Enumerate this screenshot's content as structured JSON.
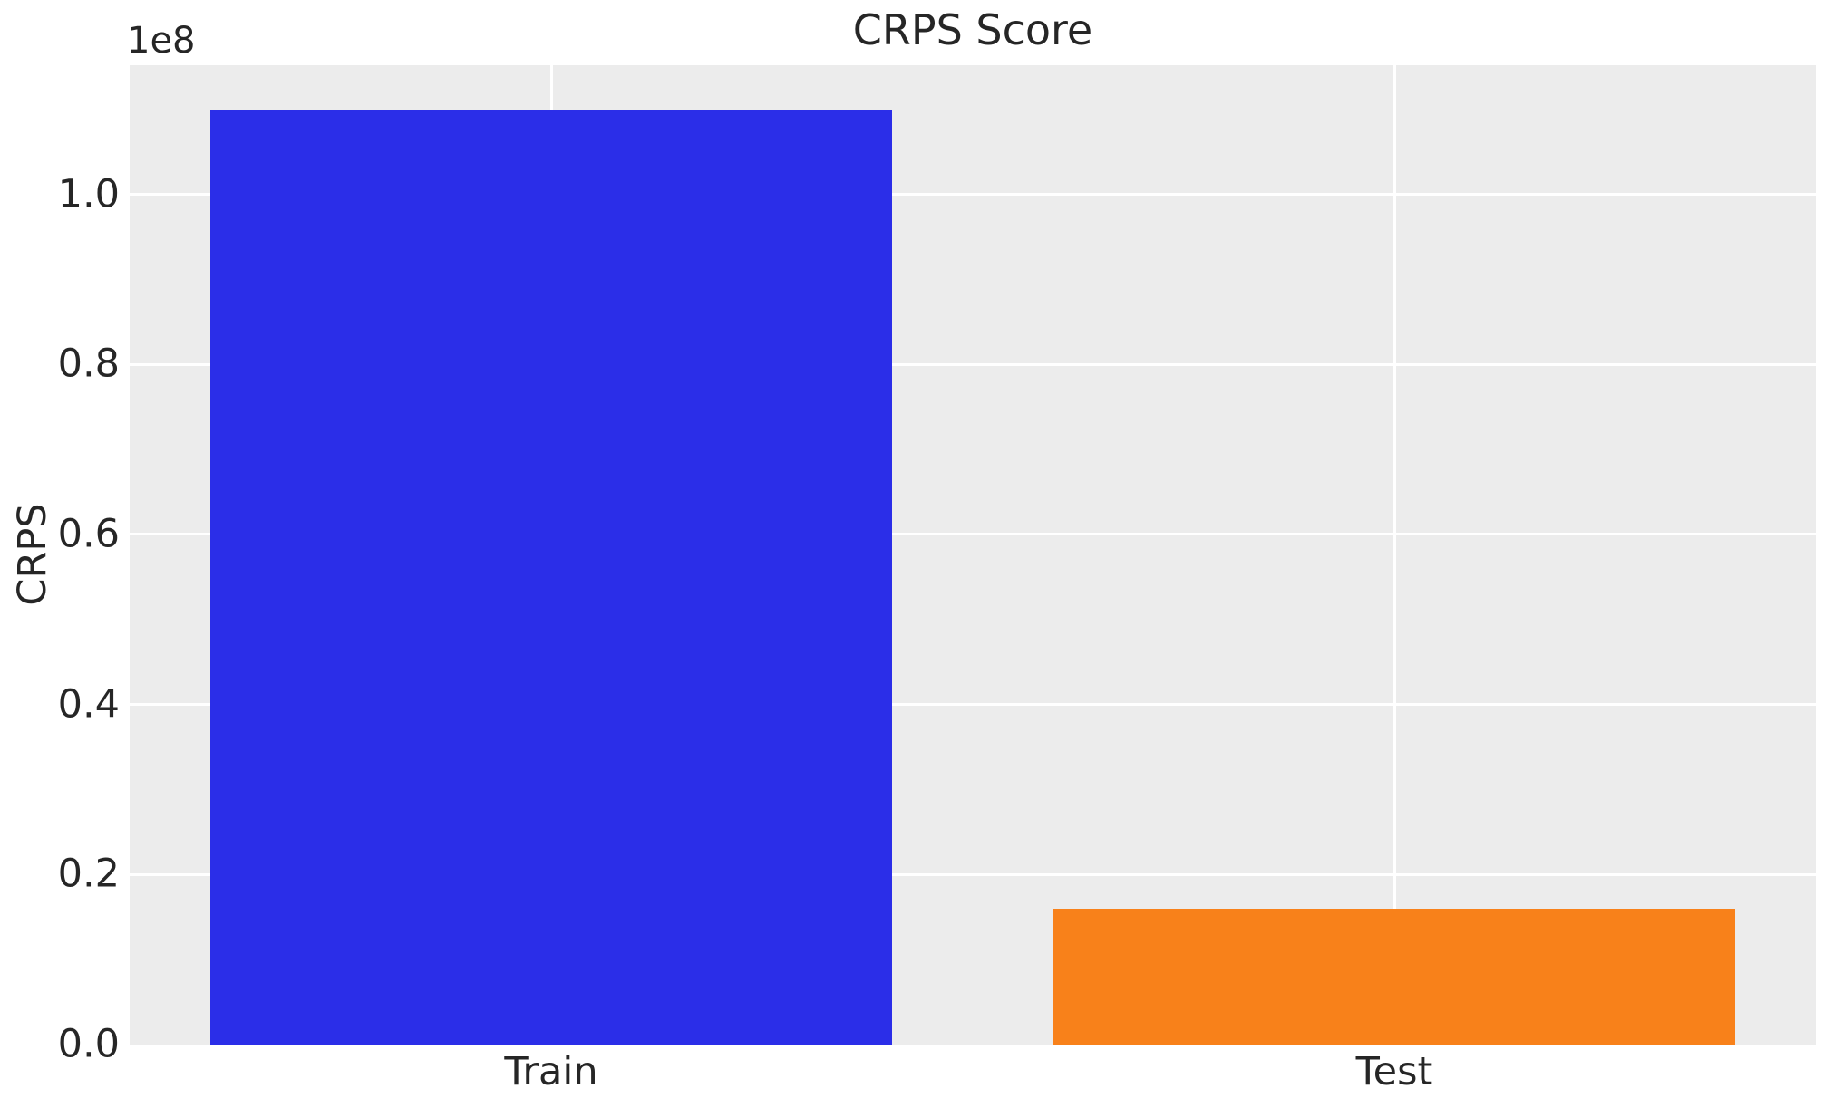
{
  "chart_data": {
    "type": "bar",
    "title": "CRPS Score",
    "xlabel": "",
    "ylabel": "CRPS",
    "y_offset_text": "1e8",
    "categories": [
      "Train",
      "Test"
    ],
    "values": [
      110000000,
      16000000
    ],
    "bar_colors": [
      "#2b2ee8",
      "#f8811a"
    ],
    "yticks": [
      {
        "label": "0.0",
        "value": 0
      },
      {
        "label": "0.2",
        "value": 20000000
      },
      {
        "label": "0.4",
        "value": 40000000
      },
      {
        "label": "0.6",
        "value": 60000000
      },
      {
        "label": "0.8",
        "value": 80000000
      },
      {
        "label": "1.0",
        "value": 100000000
      }
    ],
    "ylim": [
      0,
      115200000
    ],
    "grid": true,
    "plot_background_color": "#ececec",
    "gridline_color": "#ffffff",
    "text_color": "#262626"
  }
}
